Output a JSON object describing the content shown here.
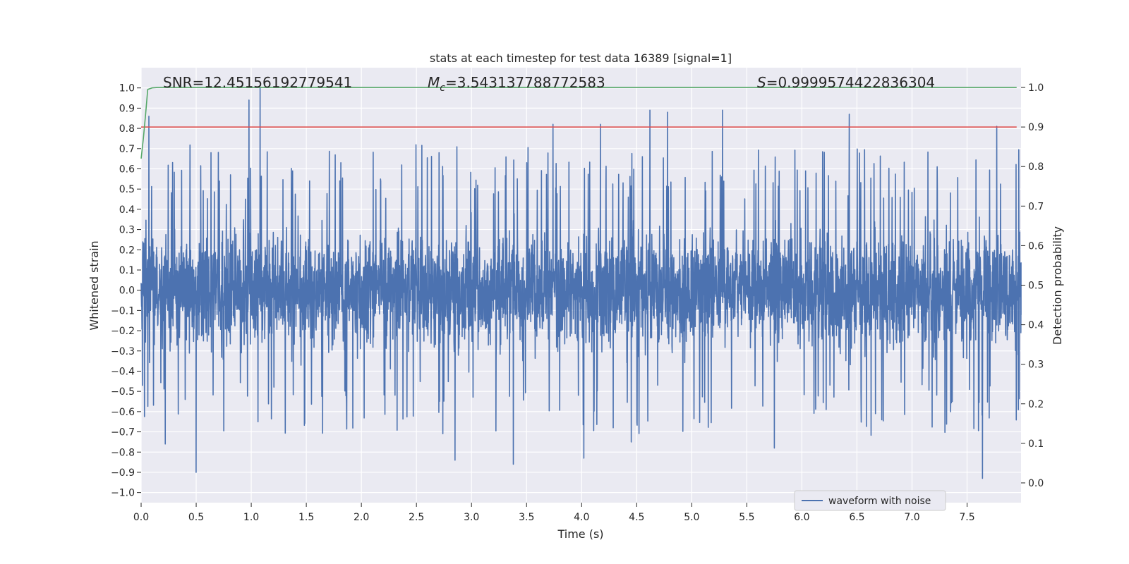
{
  "chart_data": {
    "type": "line",
    "title": "stats at each timestep for test data 16389 [signal=1]",
    "xlabel": "Time (s)",
    "ylabel": "Whitened strain",
    "y2label": "Detection probability",
    "xlim": [
      0,
      7.99
    ],
    "ylim": [
      -1.05,
      1.1
    ],
    "y2lim": [
      -0.05,
      1.05
    ],
    "x_ticks": [
      0.0,
      0.5,
      1.0,
      1.5,
      2.0,
      2.5,
      3.0,
      3.5,
      4.0,
      4.5,
      5.0,
      5.5,
      6.0,
      6.5,
      7.0,
      7.5
    ],
    "y_ticks": [
      -1.0,
      -0.9,
      -0.8,
      -0.7,
      -0.6,
      -0.5,
      -0.4,
      -0.3,
      -0.2,
      -0.1,
      0.0,
      0.1,
      0.2,
      0.3,
      0.4,
      0.5,
      0.6,
      0.7,
      0.8,
      0.9,
      1.0
    ],
    "y2_ticks": [
      0.0,
      0.1,
      0.2,
      0.3,
      0.4,
      0.5,
      0.6,
      0.7,
      0.8,
      0.9,
      1.0
    ],
    "grid": true,
    "legend_position": "lower-right",
    "annotations": {
      "snr": "SNR=12.45156192779541",
      "mc_symbol": "M",
      "mc_sub": "c",
      "mc_value": "=3.543137788772583",
      "s_symbol": "S",
      "s_value": "=0.9999574422836304"
    },
    "series": [
      {
        "name": "waveform with noise",
        "axis": "left",
        "color": "#4c72b0",
        "description_values": {
          "duration_s": 8,
          "max_peaks": [
            {
              "x": 1.08,
              "y": 1.0
            },
            {
              "x": 0.98,
              "y": 0.94
            },
            {
              "x": 0.07,
              "y": 0.86
            },
            {
              "x": 4.62,
              "y": 0.89
            },
            {
              "x": 5.28,
              "y": 0.89
            },
            {
              "x": 4.78,
              "y": 0.88
            },
            {
              "x": 6.43,
              "y": 0.87
            },
            {
              "x": 4.17,
              "y": 0.82
            },
            {
              "x": 3.74,
              "y": 0.82
            },
            {
              "x": 7.77,
              "y": 0.81
            }
          ],
          "min_peaks": [
            {
              "x": 0.5,
              "y": -0.9
            },
            {
              "x": 7.64,
              "y": -0.93
            },
            {
              "x": 3.38,
              "y": -0.86
            },
            {
              "x": 2.85,
              "y": -0.84
            },
            {
              "x": 4.02,
              "y": -0.83
            },
            {
              "x": 5.75,
              "y": -0.78
            },
            {
              "x": 0.22,
              "y": -0.76
            },
            {
              "x": 4.45,
              "y": -0.75
            }
          ]
        }
      },
      {
        "name": "",
        "axis": "right",
        "color": "#dd4f4f",
        "x": [
          0.0,
          7.95
        ],
        "y": [
          0.9,
          0.9
        ]
      },
      {
        "name": "",
        "axis": "right",
        "color": "#55a868",
        "x": [
          0.0,
          0.02,
          0.04,
          0.06,
          0.1,
          0.15,
          0.3,
          1.0,
          3.0,
          5.0,
          7.95
        ],
        "y": [
          0.82,
          0.87,
          0.93,
          0.995,
          0.999,
          1.0,
          1.0,
          1.0,
          1.0,
          1.0,
          1.0
        ]
      }
    ]
  }
}
